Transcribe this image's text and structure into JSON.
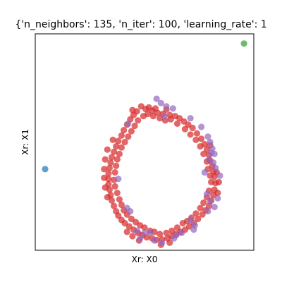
{
  "chart_data": {
    "type": "scatter",
    "title": "{'n_neighbors': 135, 'n_iter': 100, 'learning_rate': 1",
    "xlabel": "Xr: X0",
    "ylabel": "Xr: X1",
    "grid": false,
    "xlim": [
      0,
      100
    ],
    "ylim": [
      0,
      100
    ],
    "series": [
      {
        "color": "#d62728",
        "points": [
          [
            44.5,
            64.8
          ],
          [
            46.5,
            64.2
          ],
          [
            50.5,
            65.2
          ],
          [
            53.5,
            64.5
          ],
          [
            56.0,
            63.5
          ],
          [
            58.5,
            63.0
          ],
          [
            61.5,
            62.5
          ],
          [
            64.0,
            62.0
          ],
          [
            66.0,
            61.0
          ],
          [
            68.0,
            59.5
          ],
          [
            70.0,
            58.0
          ],
          [
            72.0,
            56.5
          ],
          [
            74.0,
            54.0
          ],
          [
            76.0,
            51.5
          ],
          [
            77.5,
            49.0
          ],
          [
            78.5,
            46.5
          ],
          [
            79.5,
            44.0
          ],
          [
            80.0,
            41.5
          ],
          [
            81.0,
            39.0
          ],
          [
            81.5,
            36.5
          ],
          [
            82.0,
            34.0
          ],
          [
            82.5,
            31.0
          ],
          [
            82.0,
            28.0
          ],
          [
            81.5,
            25.5
          ],
          [
            80.5,
            23.0
          ],
          [
            79.5,
            20.5
          ],
          [
            78.0,
            18.5
          ],
          [
            76.5,
            16.5
          ],
          [
            74.5,
            14.5
          ],
          [
            72.5,
            12.5
          ],
          [
            70.5,
            11.0
          ],
          [
            68.5,
            9.5
          ],
          [
            66.5,
            8.5
          ],
          [
            64.5,
            7.5
          ],
          [
            62.5,
            6.5
          ],
          [
            60.5,
            5.5
          ],
          [
            58.0,
            5.0
          ],
          [
            55.5,
            4.8
          ],
          [
            53.5,
            5.5
          ],
          [
            51.0,
            6.0
          ],
          [
            49.0,
            7.0
          ],
          [
            47.0,
            8.0
          ],
          [
            45.0,
            9.5
          ],
          [
            43.0,
            11.0
          ],
          [
            41.0,
            12.5
          ],
          [
            39.5,
            14.0
          ],
          [
            38.0,
            16.0
          ],
          [
            37.0,
            18.0
          ],
          [
            36.0,
            20.5
          ],
          [
            35.0,
            23.0
          ],
          [
            34.5,
            25.5
          ],
          [
            34.0,
            28.0
          ],
          [
            33.5,
            30.5
          ],
          [
            33.5,
            33.0
          ],
          [
            33.5,
            35.5
          ],
          [
            34.0,
            38.0
          ],
          [
            34.5,
            40.5
          ],
          [
            35.0,
            43.0
          ],
          [
            36.0,
            45.5
          ],
          [
            37.0,
            48.0
          ],
          [
            38.0,
            50.5
          ],
          [
            39.5,
            53.0
          ],
          [
            40.5,
            55.5
          ],
          [
            42.0,
            58.0
          ],
          [
            43.5,
            60.5
          ],
          [
            45.0,
            62.5
          ],
          [
            48.5,
            66.5
          ],
          [
            52.0,
            66.0
          ],
          [
            55.0,
            65.5
          ],
          [
            60.0,
            65.0
          ],
          [
            62.0,
            60.5
          ],
          [
            65.0,
            58.5
          ],
          [
            68.5,
            56.0
          ],
          [
            71.0,
            53.5
          ],
          [
            73.5,
            51.0
          ],
          [
            75.5,
            48.0
          ],
          [
            77.0,
            44.5
          ],
          [
            78.5,
            41.0
          ],
          [
            79.0,
            37.5
          ],
          [
            80.0,
            34.5
          ],
          [
            80.5,
            31.5
          ],
          [
            79.5,
            27.5
          ],
          [
            78.5,
            24.5
          ],
          [
            77.0,
            22.0
          ],
          [
            75.5,
            19.5
          ],
          [
            73.5,
            17.0
          ],
          [
            71.5,
            15.0
          ],
          [
            69.5,
            13.5
          ],
          [
            67.5,
            12.5
          ],
          [
            65.0,
            10.5
          ],
          [
            62.5,
            9.0
          ],
          [
            60.0,
            8.0
          ],
          [
            57.0,
            7.5
          ],
          [
            54.5,
            8.5
          ],
          [
            52.5,
            9.0
          ],
          [
            50.0,
            10.5
          ],
          [
            48.0,
            11.5
          ],
          [
            46.0,
            13.0
          ],
          [
            44.0,
            14.5
          ],
          [
            42.0,
            16.5
          ],
          [
            40.5,
            18.5
          ],
          [
            39.5,
            21.0
          ],
          [
            38.5,
            23.5
          ],
          [
            37.5,
            26.5
          ],
          [
            36.5,
            29.5
          ],
          [
            36.0,
            32.5
          ],
          [
            36.5,
            36.0
          ],
          [
            37.0,
            39.0
          ],
          [
            37.5,
            42.0
          ],
          [
            38.5,
            44.5
          ],
          [
            39.5,
            47.5
          ],
          [
            41.0,
            50.0
          ],
          [
            42.5,
            52.5
          ],
          [
            44.0,
            55.0
          ],
          [
            45.5,
            57.5
          ],
          [
            47.0,
            60.0
          ],
          [
            49.5,
            62.0
          ],
          [
            51.5,
            63.0
          ],
          [
            54.0,
            62.0
          ],
          [
            57.0,
            61.0
          ],
          [
            59.5,
            60.0
          ],
          [
            35.5,
            51.0
          ],
          [
            33.0,
            46.5
          ],
          [
            32.0,
            42.0
          ],
          [
            31.5,
            37.5
          ],
          [
            31.5,
            33.5
          ],
          [
            32.0,
            29.0
          ],
          [
            33.0,
            24.5
          ],
          [
            83.0,
            36.0
          ],
          [
            84.0,
            31.5
          ],
          [
            83.5,
            26.5
          ],
          [
            80.0,
            48.5
          ],
          [
            42.0,
            8.5
          ],
          [
            44.5,
            6.5
          ],
          [
            61.5,
            3.5
          ],
          [
            57.5,
            2.5
          ],
          [
            47.5,
            4.5
          ]
        ]
      },
      {
        "color": "#9467bd",
        "points": [
          [
            55.5,
            70.0
          ],
          [
            57.5,
            68.0
          ],
          [
            60.0,
            66.5
          ],
          [
            63.0,
            65.5
          ],
          [
            59.0,
            62.0
          ],
          [
            42.5,
            58.5
          ],
          [
            79.0,
            52.5
          ],
          [
            80.0,
            50.0
          ],
          [
            81.0,
            47.0
          ],
          [
            82.0,
            44.5
          ],
          [
            80.5,
            45.0
          ],
          [
            79.5,
            42.0
          ],
          [
            81.5,
            40.5
          ],
          [
            78.5,
            26.0
          ],
          [
            80.0,
            22.5
          ],
          [
            82.0,
            20.0
          ],
          [
            83.5,
            24.0
          ],
          [
            79.0,
            18.0
          ],
          [
            73.0,
            11.5
          ],
          [
            72.5,
            9.5
          ],
          [
            71.0,
            14.0
          ],
          [
            67.0,
            8.0
          ],
          [
            58.0,
            3.5
          ],
          [
            54.5,
            4.5
          ],
          [
            52.5,
            8.0
          ],
          [
            50.0,
            8.0
          ],
          [
            48.0,
            5.5
          ],
          [
            46.5,
            9.0
          ],
          [
            43.5,
            18.0
          ],
          [
            42.0,
            19.5
          ],
          [
            63.5,
            5.5
          ],
          [
            64.5,
            7.0
          ],
          [
            38.0,
            33.0
          ],
          [
            84.5,
            34.5
          ],
          [
            82.5,
            38.0
          ],
          [
            76.0,
            57.0
          ],
          [
            71.0,
            61.0
          ],
          [
            77.5,
            36.0
          ]
        ]
      },
      {
        "color": "#1f77b4",
        "points": [
          [
            4.5,
            37.5
          ]
        ]
      },
      {
        "color": "#2ca02c",
        "points": [
          [
            95.5,
            95.5
          ]
        ]
      }
    ]
  }
}
